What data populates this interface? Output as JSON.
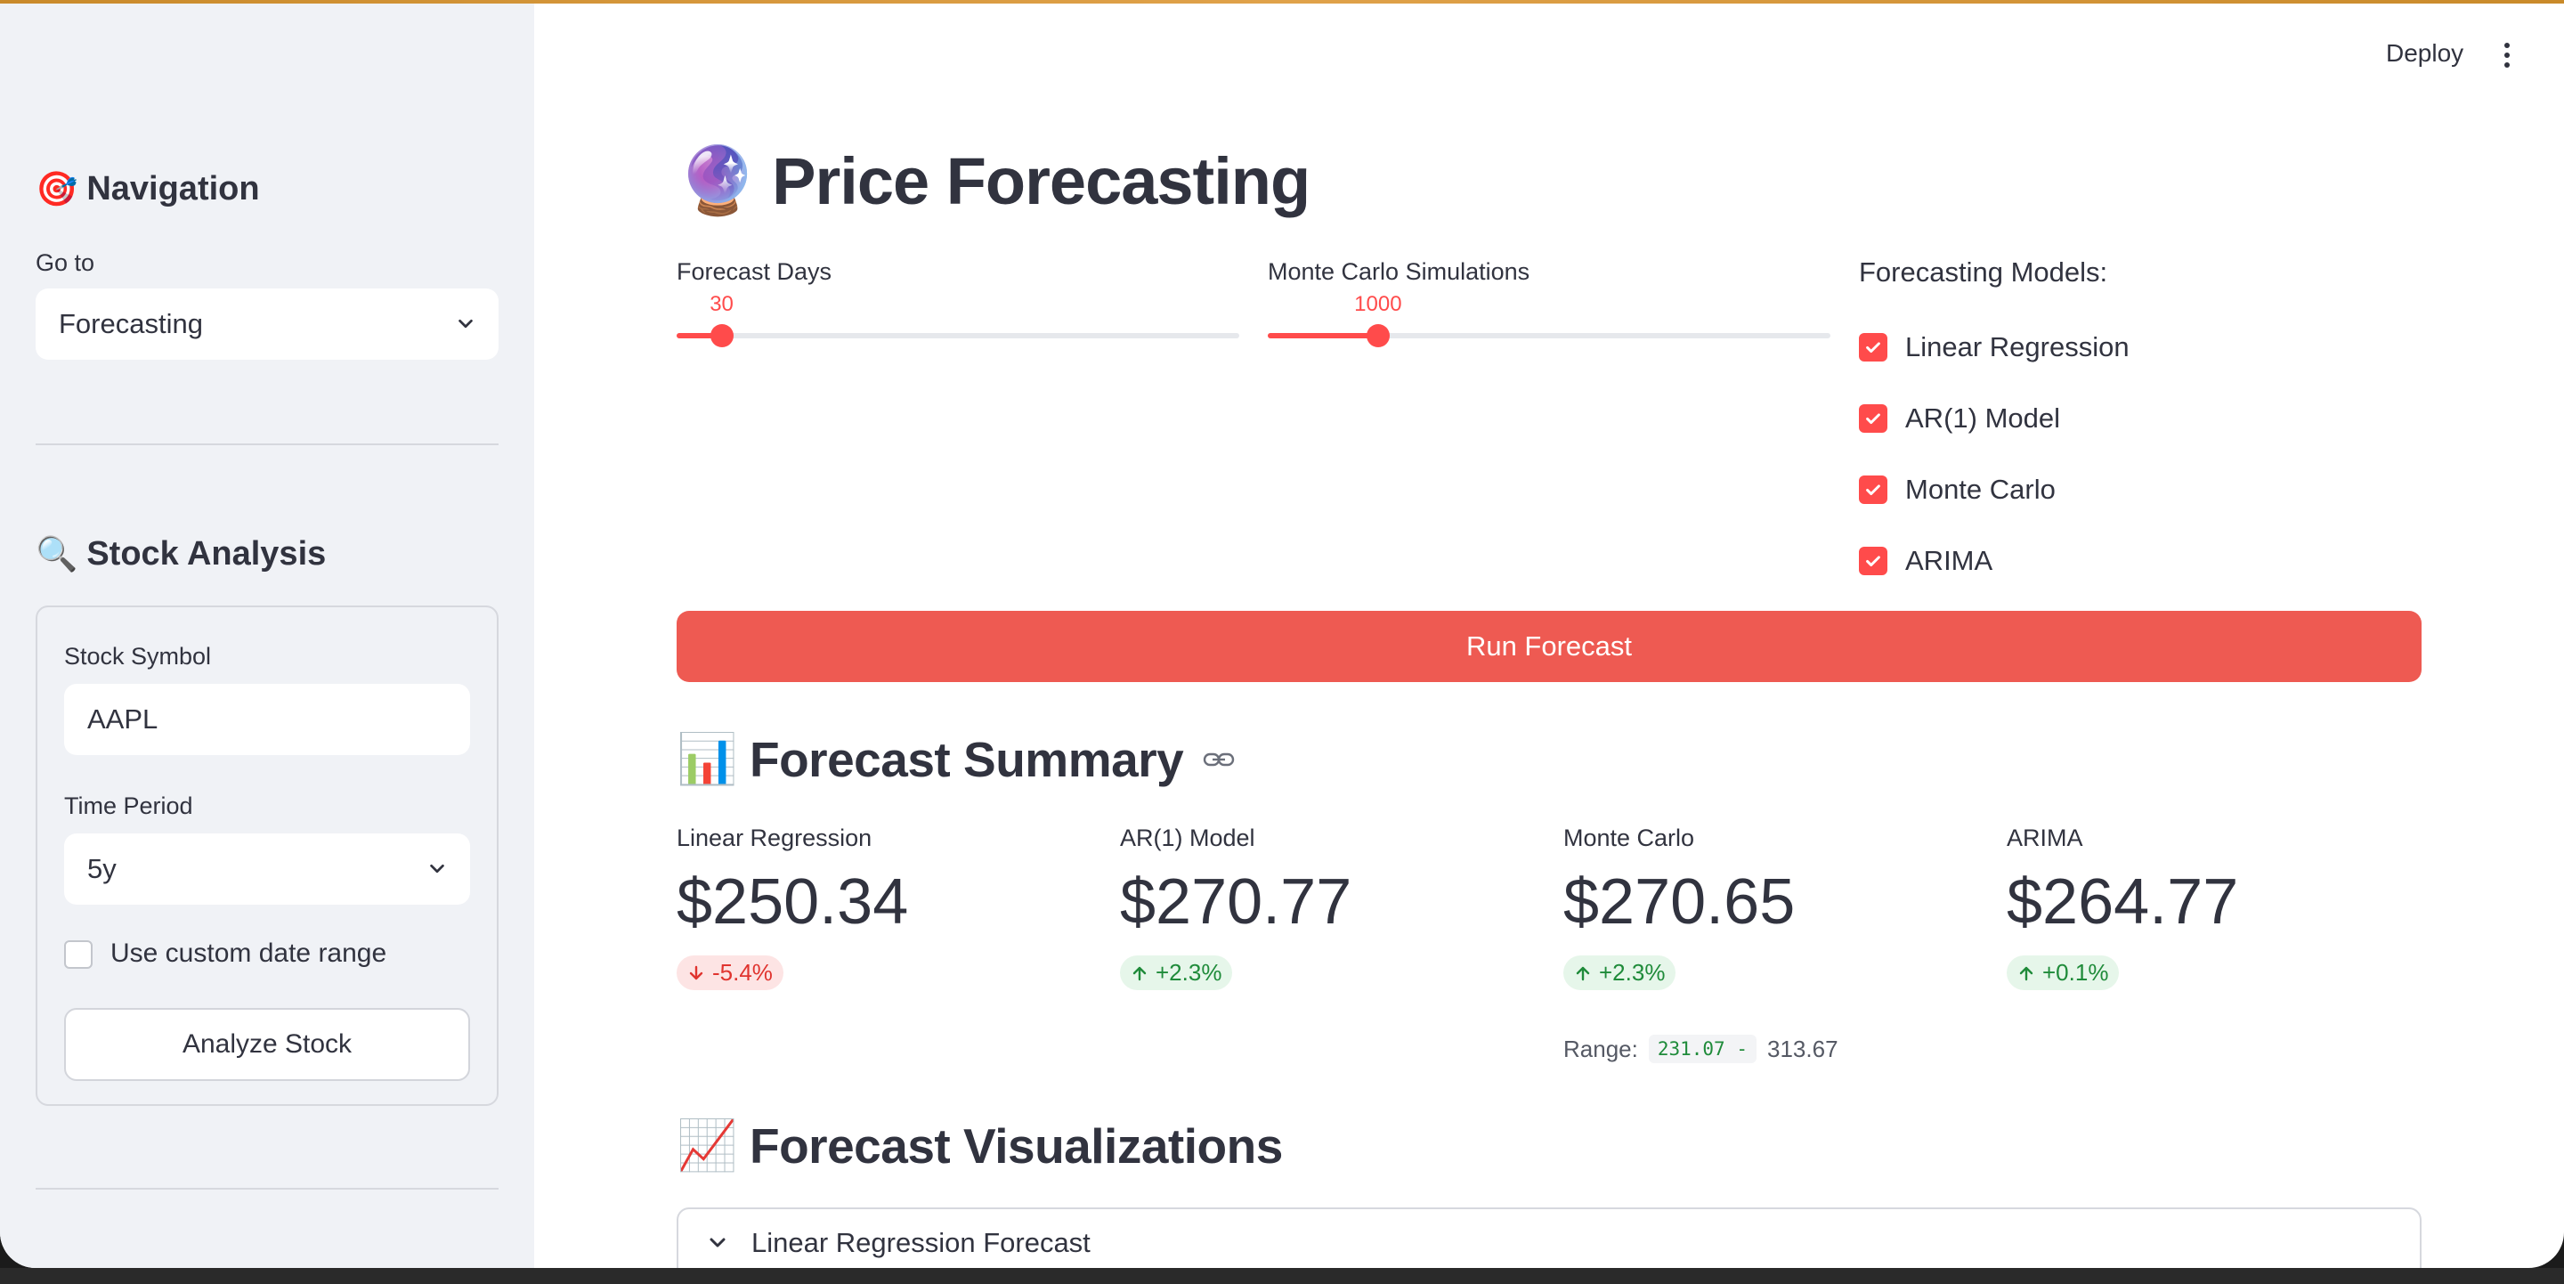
{
  "header": {
    "deploy_label": "Deploy",
    "menu_icon": "kebab-menu-icon"
  },
  "sidebar": {
    "nav_heading": {
      "emoji": "🎯",
      "text": "Navigation"
    },
    "goto_label": "Go to",
    "goto_value": "Forecasting",
    "stock_heading": {
      "emoji": "🔍",
      "text": "Stock Analysis"
    },
    "symbol_label": "Stock Symbol",
    "symbol_value": "AAPL",
    "period_label": "Time Period",
    "period_value": "5y",
    "custom_range_label": "Use custom date range",
    "custom_range_checked": false,
    "analyze_label": "Analyze Stock"
  },
  "main": {
    "title": {
      "emoji": "🔮",
      "text": "Price Forecasting"
    },
    "forecast_days": {
      "label": "Forecast Days",
      "value": "30",
      "fraction": 0.08
    },
    "mc_sims": {
      "label": "Monte Carlo Simulations",
      "value": "1000",
      "fraction": 0.196
    },
    "models_heading": "Forecasting Models:",
    "models": [
      {
        "label": "Linear Regression",
        "checked": true
      },
      {
        "label": "AR(1) Model",
        "checked": true
      },
      {
        "label": "Monte Carlo",
        "checked": true
      },
      {
        "label": "ARIMA",
        "checked": true
      }
    ],
    "run_label": "Run Forecast",
    "summary_heading": {
      "emoji": "📊",
      "text": "Forecast Summary"
    },
    "metrics": [
      {
        "label": "Linear Regression",
        "value": "$250.34",
        "delta": "-5.4%",
        "direction": "down"
      },
      {
        "label": "AR(1) Model",
        "value": "$270.77",
        "delta": "+2.3%",
        "direction": "up"
      },
      {
        "label": "Monte Carlo",
        "value": "$270.65",
        "delta": "+2.3%",
        "direction": "up"
      },
      {
        "label": "ARIMA",
        "value": "$264.77",
        "delta": "+0.1%",
        "direction": "up"
      }
    ],
    "range": {
      "label": "Range:",
      "low": "231.07 -",
      "high": "313.67"
    },
    "viz_heading": {
      "emoji": "📈",
      "text": "Forecast Visualizations"
    },
    "expander_label": "Linear Regression Forecast"
  },
  "colors": {
    "accent": "#ff4b4b",
    "run_button": "#ee5a52",
    "sidebar_bg": "#f0f2f6",
    "text": "#31333f",
    "positive": "#1f8b3a",
    "negative": "#e0342f"
  }
}
